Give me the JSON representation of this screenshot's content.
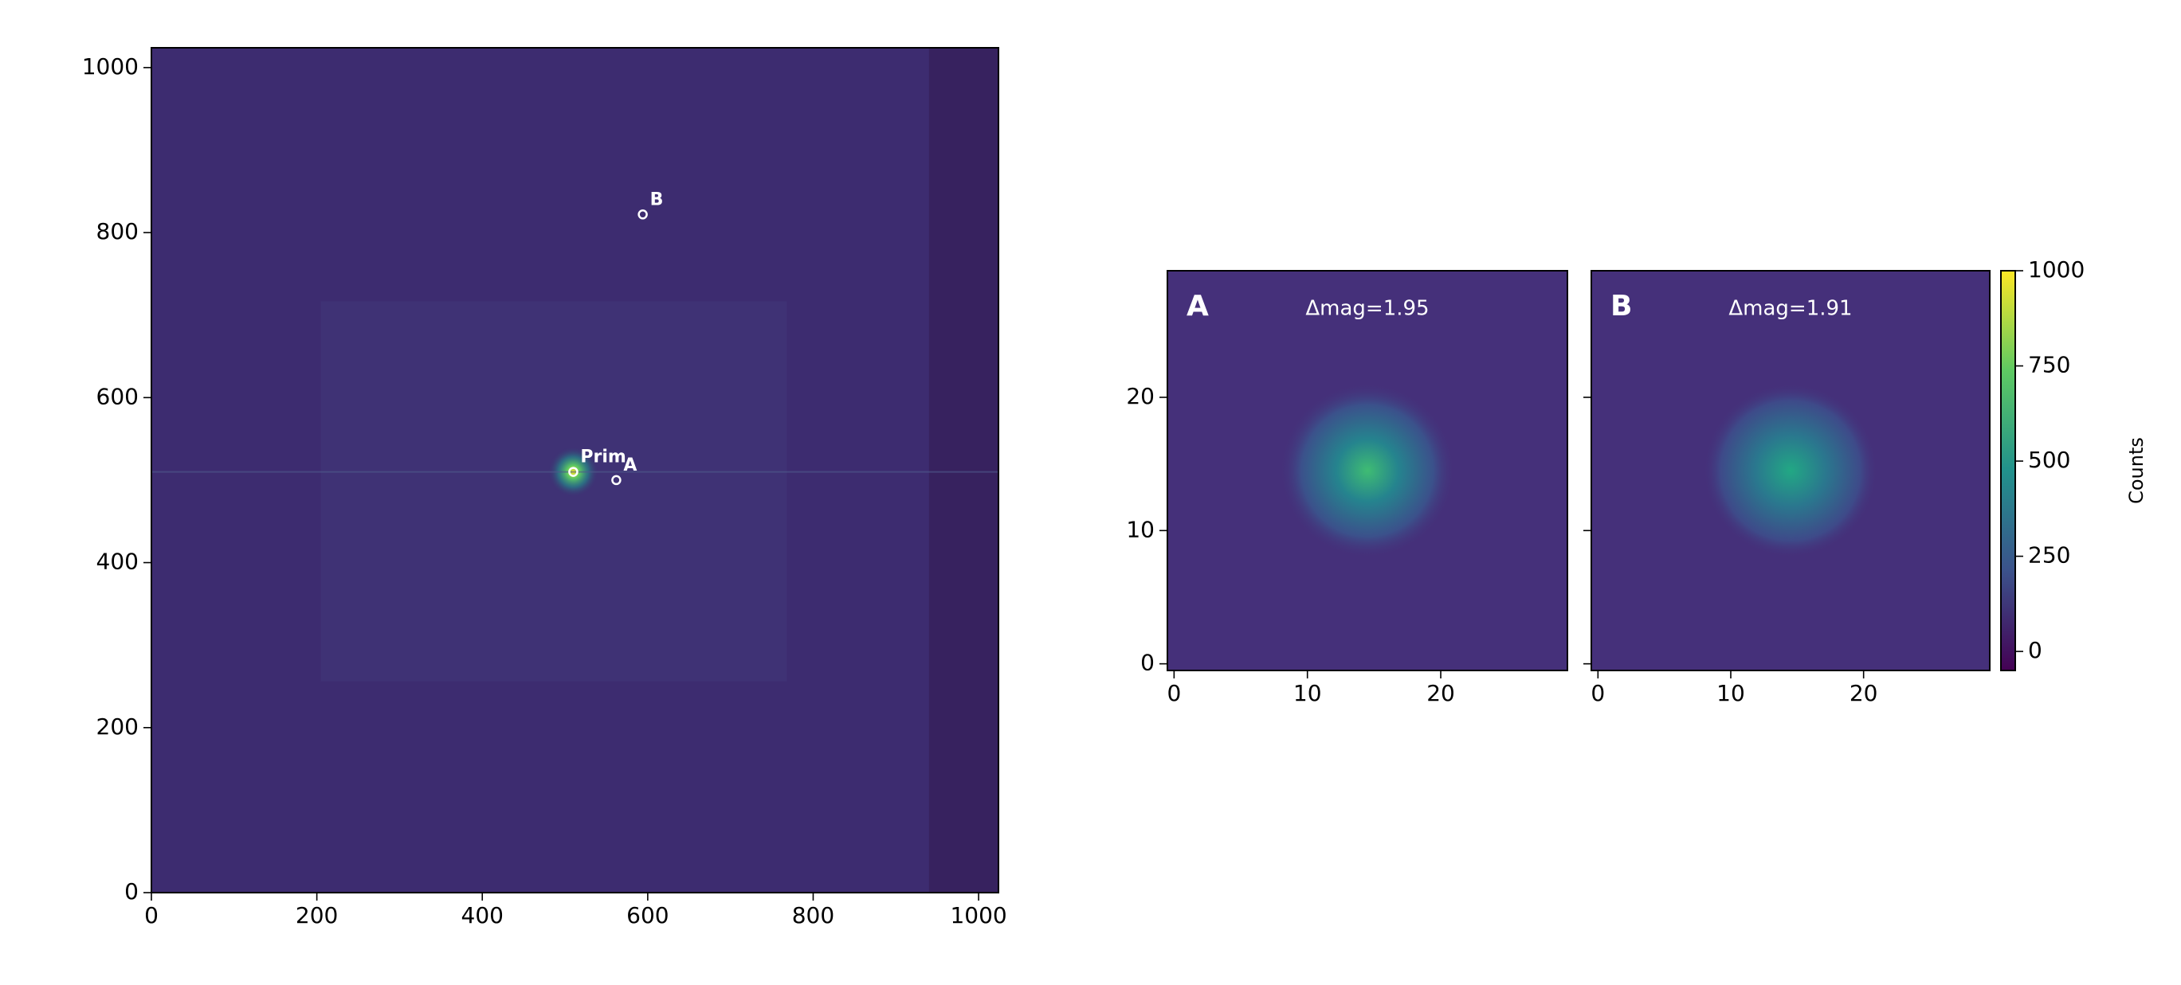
{
  "chart_data": [
    {
      "type": "image",
      "xlim": [
        0,
        1024
      ],
      "ylim": [
        0,
        1024
      ],
      "xticks": [
        0,
        200,
        400,
        600,
        800,
        1000
      ],
      "yticks": [
        0,
        200,
        400,
        600,
        800,
        1000
      ],
      "sources": [
        {
          "label": "Prim",
          "x": 510,
          "y": 510
        },
        {
          "label": "A",
          "x": 562,
          "y": 500
        },
        {
          "label": "B",
          "x": 594,
          "y": 822
        }
      ]
    },
    {
      "type": "cutout",
      "label": "A",
      "annotation": "Δmag=1.95",
      "xlim": [
        -0.5,
        29.5
      ],
      "ylim": [
        -0.5,
        29.5
      ],
      "xticks": [
        0,
        10,
        20
      ],
      "yticks": [
        0,
        10,
        20
      ],
      "show_ytick_labels": true
    },
    {
      "type": "cutout",
      "label": "B",
      "annotation": "Δmag=1.91",
      "xlim": [
        -0.5,
        29.5
      ],
      "ylim": [
        -0.5,
        29.5
      ],
      "xticks": [
        0,
        10,
        20
      ],
      "yticks": [
        0,
        10,
        20
      ],
      "show_ytick_labels": false
    },
    {
      "type": "colorbar",
      "label": "Counts",
      "ylim": [
        -50,
        1000
      ],
      "yticks": [
        0,
        250,
        500,
        750,
        1000
      ]
    }
  ]
}
